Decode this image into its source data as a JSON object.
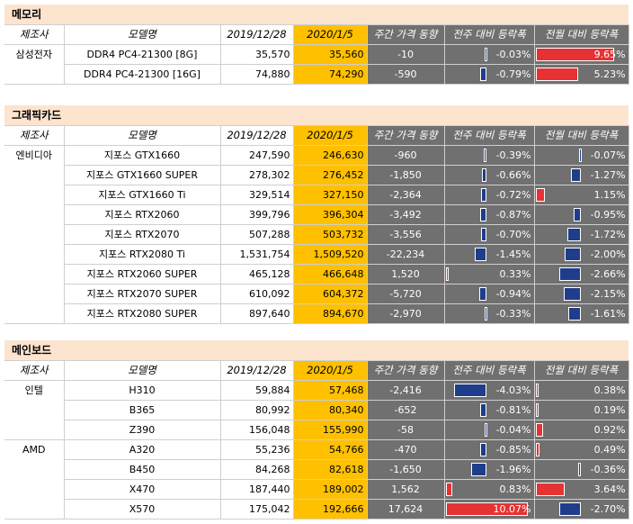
{
  "columns": {
    "maker": "제조사",
    "model": "모델명",
    "date1": "2019/12/28",
    "date2": "2020/1/5",
    "weekly_change": "주간 가격 동향",
    "wow_pct": "전주 대비 등락폭",
    "mom_pct": "전월 대비 등락폭"
  },
  "sections": [
    {
      "title": "메모리",
      "rows": [
        {
          "maker": "삼성전자",
          "model": "DDR4 PC4-21300 [8G]",
          "p1": "35,570",
          "p2": "35,560",
          "chg": "-10",
          "wow": "-0.03%",
          "wow_v": -0.03,
          "mom": "9.65%",
          "mom_v": 9.65
        },
        {
          "maker": "",
          "model": "DDR4 PC4-21300 [16G]",
          "p1": "74,880",
          "p2": "74,290",
          "chg": "-590",
          "wow": "-0.79%",
          "wow_v": -0.79,
          "mom": "5.23%",
          "mom_v": 5.23
        }
      ]
    },
    {
      "title": "그래픽카드",
      "rows": [
        {
          "maker": "엔비디아",
          "model": "지포스 GTX1660",
          "p1": "247,590",
          "p2": "246,630",
          "chg": "-960",
          "wow": "-0.39%",
          "wow_v": -0.39,
          "mom": "-0.07%",
          "mom_v": -0.07
        },
        {
          "maker": "",
          "model": "지포스 GTX1660 SUPER",
          "p1": "278,302",
          "p2": "276,452",
          "chg": "-1,850",
          "wow": "-0.66%",
          "wow_v": -0.66,
          "mom": "-1.27%",
          "mom_v": -1.27
        },
        {
          "maker": "",
          "model": "지포스 GTX1660 Ti",
          "p1": "329,514",
          "p2": "327,150",
          "chg": "-2,364",
          "wow": "-0.72%",
          "wow_v": -0.72,
          "mom": "1.15%",
          "mom_v": 1.15
        },
        {
          "maker": "",
          "model": "지포스 RTX2060",
          "p1": "399,796",
          "p2": "396,304",
          "chg": "-3,492",
          "wow": "-0.87%",
          "wow_v": -0.87,
          "mom": "-0.95%",
          "mom_v": -0.95
        },
        {
          "maker": "",
          "model": "지포스 RTX2070",
          "p1": "507,288",
          "p2": "503,732",
          "chg": "-3,556",
          "wow": "-0.70%",
          "wow_v": -0.7,
          "mom": "-1.72%",
          "mom_v": -1.72
        },
        {
          "maker": "",
          "model": "지포스 RTX2080 Ti",
          "p1": "1,531,754",
          "p2": "1,509,520",
          "chg": "-22,234",
          "wow": "-1.45%",
          "wow_v": -1.45,
          "mom": "-2.00%",
          "mom_v": -2.0
        },
        {
          "maker": "",
          "model": "지포스 RTX2060 SUPER",
          "p1": "465,128",
          "p2": "466,648",
          "chg": "1,520",
          "wow": "0.33%",
          "wow_v": 0.33,
          "mom": "-2.66%",
          "mom_v": -2.66
        },
        {
          "maker": "",
          "model": "지포스 RTX2070 SUPER",
          "p1": "610,092",
          "p2": "604,372",
          "chg": "-5,720",
          "wow": "-0.94%",
          "wow_v": -0.94,
          "mom": "-2.15%",
          "mom_v": -2.15
        },
        {
          "maker": "",
          "model": "지포스 RTX2080 SUPER",
          "p1": "897,640",
          "p2": "894,670",
          "chg": "-2,970",
          "wow": "-0.33%",
          "wow_v": -0.33,
          "mom": "-1.61%",
          "mom_v": -1.61
        }
      ]
    },
    {
      "title": "메인보드",
      "rows": [
        {
          "maker": "인텔",
          "model": "H310",
          "p1": "59,884",
          "p2": "57,468",
          "chg": "-2,416",
          "wow": "-4.03%",
          "wow_v": -4.03,
          "mom": "0.38%",
          "mom_v": 0.38
        },
        {
          "maker": "",
          "model": "B365",
          "p1": "80,992",
          "p2": "80,340",
          "chg": "-652",
          "wow": "-0.81%",
          "wow_v": -0.81,
          "mom": "0.19%",
          "mom_v": 0.19
        },
        {
          "maker": "",
          "model": "Z390",
          "p1": "156,048",
          "p2": "155,990",
          "chg": "-58",
          "wow": "-0.04%",
          "wow_v": -0.04,
          "mom": "0.92%",
          "mom_v": 0.92
        },
        {
          "maker": "AMD",
          "model": "A320",
          "p1": "55,236",
          "p2": "54,766",
          "chg": "-470",
          "wow": "-0.85%",
          "wow_v": -0.85,
          "mom": "0.49%",
          "mom_v": 0.49
        },
        {
          "maker": "",
          "model": "B450",
          "p1": "84,268",
          "p2": "82,618",
          "chg": "-1,650",
          "wow": "-1.96%",
          "wow_v": -1.96,
          "mom": "-0.36%",
          "mom_v": -0.36
        },
        {
          "maker": "",
          "model": "X470",
          "p1": "187,440",
          "p2": "189,002",
          "chg": "1,562",
          "wow": "0.83%",
          "wow_v": 0.83,
          "mom": "3.64%",
          "mom_v": 3.64
        },
        {
          "maker": "",
          "model": "X570",
          "p1": "175,042",
          "p2": "192,666",
          "chg": "17,624",
          "wow": "10.07%",
          "wow_v": 10.07,
          "mom": "-2.70%",
          "mom_v": -2.7
        }
      ]
    }
  ],
  "colors": {
    "title_bg": "#fde4cf",
    "highlight": "#ffc000",
    "gray": "#707070",
    "neg_bar": "#1f3d8a",
    "pos_bar": "#e63232"
  }
}
